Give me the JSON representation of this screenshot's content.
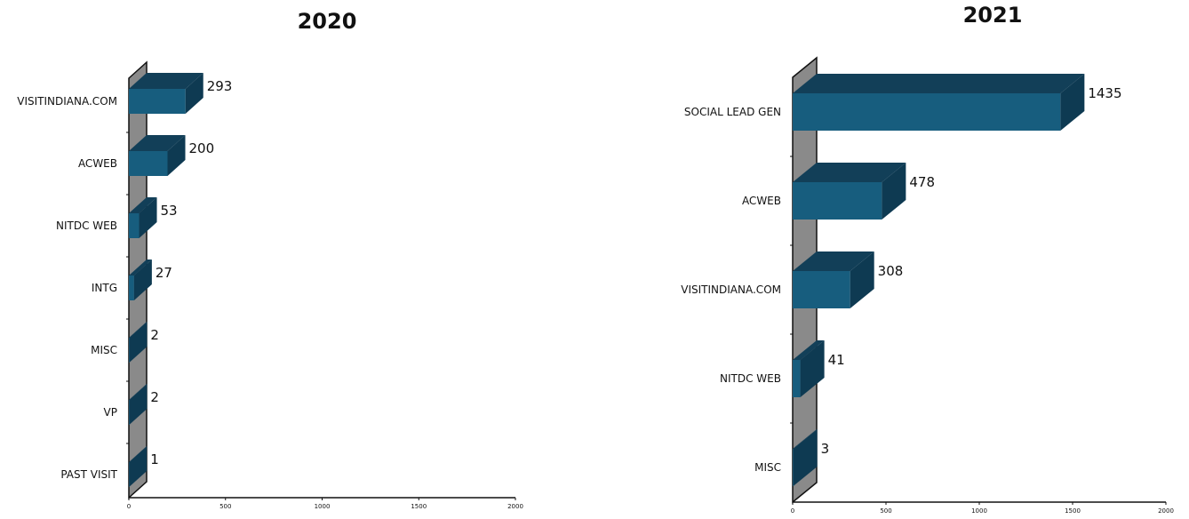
{
  "chart_data": [
    {
      "type": "bar",
      "orientation": "horizontal",
      "title": "2020",
      "categories": [
        "VISITINDIANA.COM",
        "ACWEB",
        "NITDC WEB",
        "INTG",
        "MISC",
        "VP",
        "PAST VISIT"
      ],
      "values": [
        293,
        200,
        53,
        27,
        2,
        2,
        1
      ],
      "data_labels": [
        "293",
        "200",
        "53",
        "27",
        "2",
        "2",
        "1"
      ],
      "xlim": [
        0,
        2000
      ],
      "x_ticks": [
        "0",
        "500",
        "1000",
        "1500",
        "2000"
      ],
      "grid": false,
      "three_d": true
    },
    {
      "type": "bar",
      "orientation": "horizontal",
      "title": "2021",
      "categories": [
        "SOCIAL LEAD GEN",
        "ACWEB",
        "VISITINDIANA.COM",
        "NITDC WEB",
        "MISC"
      ],
      "values": [
        1435,
        478,
        308,
        41,
        3
      ],
      "data_labels": [
        "1435",
        "478",
        "308",
        "41",
        "3"
      ],
      "xlim": [
        0,
        2000
      ],
      "x_ticks": [
        "0",
        "500",
        "1000",
        "1500",
        "2000"
      ],
      "grid": false,
      "three_d": true
    }
  ],
  "colors": {
    "bar_front": "#175d7e",
    "bar_top": "#123f58",
    "bar_side": "#0e3a52",
    "wall": "#8a8a8a",
    "axis": "#111111"
  }
}
